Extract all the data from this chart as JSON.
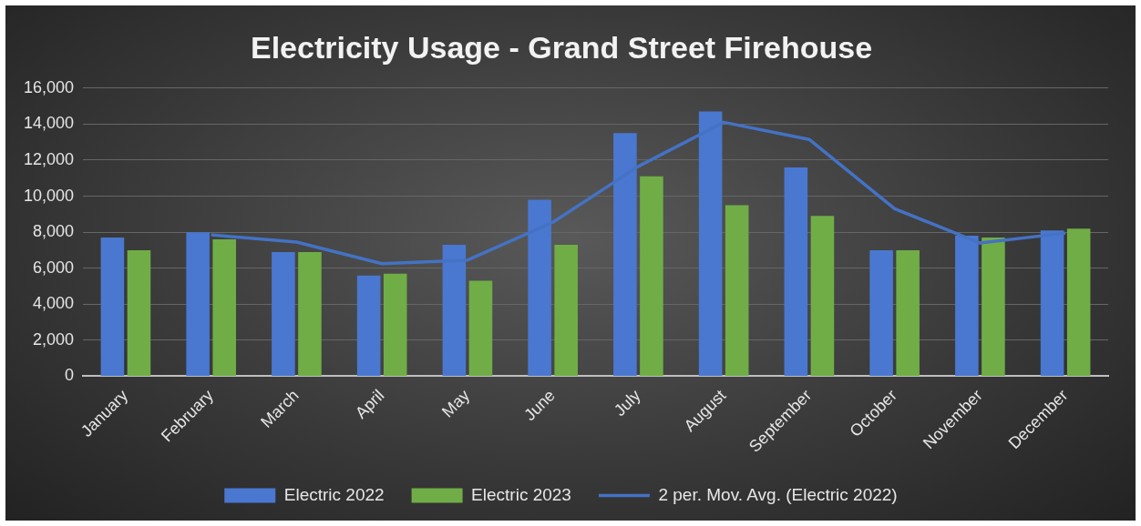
{
  "chart_data": {
    "type": "bar",
    "title": "Electricity Usage - Grand Street Firehouse",
    "categories": [
      "January",
      "February",
      "March",
      "April",
      "May",
      "June",
      "July",
      "August",
      "September",
      "October",
      "November",
      "December"
    ],
    "series": [
      {
        "name": "Electric 2022",
        "color": "#4a78d0",
        "values": [
          7700,
          8000,
          6900,
          5600,
          7300,
          9800,
          13500,
          14700,
          11600,
          7000,
          7800,
          8100
        ]
      },
      {
        "name": "Electric 2023",
        "color": "#70ad47",
        "values": [
          7000,
          7600,
          6900,
          5700,
          5300,
          7300,
          11100,
          9500,
          8900,
          7000,
          7700,
          8200
        ]
      },
      {
        "name": "2 per. Mov. Avg. (Electric 2022)",
        "type": "line",
        "color": "#4472c4",
        "values": [
          null,
          7850,
          7450,
          6250,
          6450,
          8550,
          11650,
          14100,
          13150,
          9300,
          7400,
          7950
        ]
      }
    ],
    "ylim": [
      0,
      16000
    ],
    "yticks": [
      0,
      {
        "value": 2000,
        "label": "2,000"
      },
      {
        "value": 4000,
        "label": "4,000"
      },
      {
        "value": 6000,
        "label": "6,000"
      },
      {
        "value": 8000,
        "label": "8,000"
      },
      {
        "value": 10000,
        "label": "10,000"
      },
      {
        "value": 12000,
        "label": "12,000"
      },
      {
        "value": 14000,
        "label": "14,000"
      },
      {
        "value": 16000,
        "label": "16,000"
      }
    ],
    "grid": "y",
    "legend": "bottom",
    "marker": "none",
    "line_style": "solid"
  }
}
